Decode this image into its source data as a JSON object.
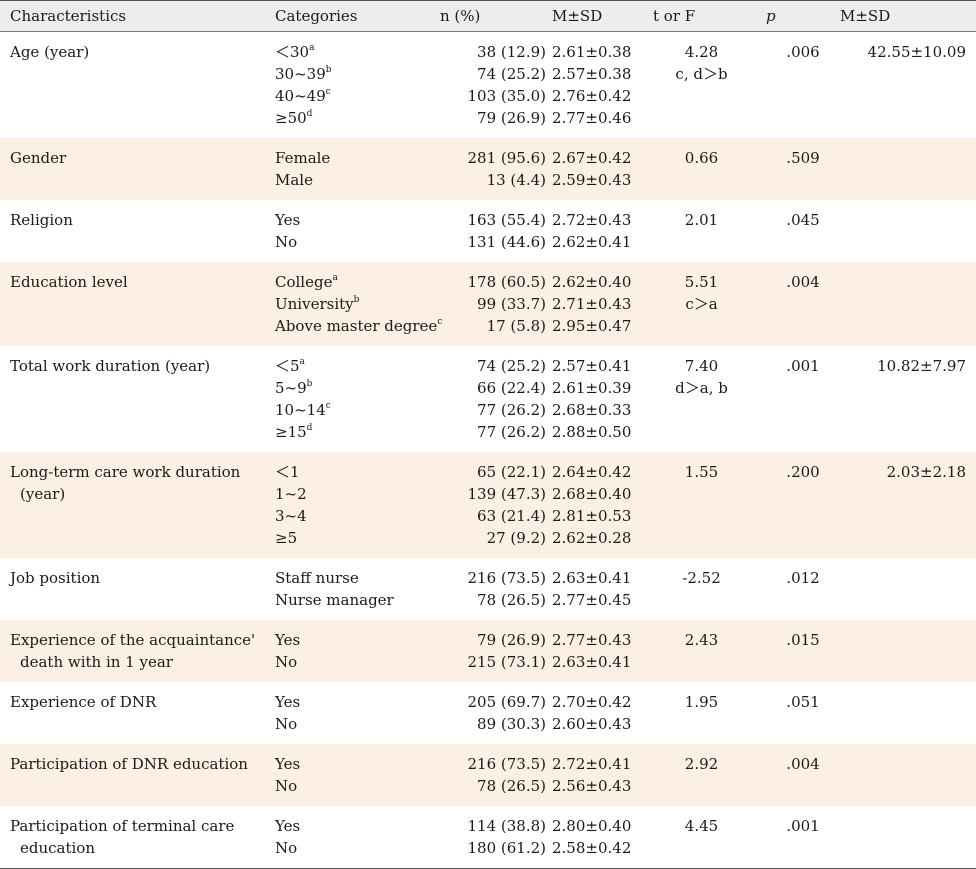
{
  "headers": {
    "characteristics": "Characteristics",
    "categories": "Categories",
    "n_pct": "n (%)",
    "msd": "M±SD",
    "t_or_f": "t or F",
    "p": "p",
    "msd2": "M±SD"
  },
  "rows": [
    {
      "characteristic": [
        "Age (year)"
      ],
      "categories": [
        {
          "label": "＜30",
          "sup": "a"
        },
        {
          "label": "30~39",
          "sup": "b"
        },
        {
          "label": "40~49",
          "sup": "c"
        },
        {
          "label": "≥50",
          "sup": "d"
        }
      ],
      "n": [
        "38 (12.9)",
        "74 (25.2)",
        "103 (35.0)",
        "79 (26.9)"
      ],
      "msd": [
        "2.61±0.38",
        "2.57±0.38",
        "2.76±0.42",
        "2.77±0.46"
      ],
      "t": [
        "4.28",
        "c, d＞b"
      ],
      "p": ".006",
      "msd2": "42.55±10.09",
      "shaded": false
    },
    {
      "characteristic": [
        "Gender"
      ],
      "categories": [
        {
          "label": "Female",
          "sup": ""
        },
        {
          "label": "Male",
          "sup": ""
        }
      ],
      "n": [
        "281 (95.6)",
        "13 (4.4)"
      ],
      "msd": [
        "2.67±0.42",
        "2.59±0.43"
      ],
      "t": [
        "0.66"
      ],
      "p": ".509",
      "msd2": "",
      "shaded": true
    },
    {
      "characteristic": [
        "Religion"
      ],
      "categories": [
        {
          "label": "Yes",
          "sup": ""
        },
        {
          "label": "No",
          "sup": ""
        }
      ],
      "n": [
        "163 (55.4)",
        "131 (44.6)"
      ],
      "msd": [
        "2.72±0.43",
        "2.62±0.41"
      ],
      "t": [
        "2.01"
      ],
      "p": ".045",
      "msd2": "",
      "shaded": false
    },
    {
      "characteristic": [
        "Education level"
      ],
      "categories": [
        {
          "label": "College",
          "sup": "a"
        },
        {
          "label": "University",
          "sup": "b"
        },
        {
          "label": "Above master degree",
          "sup": "c"
        }
      ],
      "n": [
        "178 (60.5)",
        "99 (33.7)",
        "17 (5.8)"
      ],
      "msd": [
        "2.62±0.40",
        "2.71±0.43",
        "2.95±0.47"
      ],
      "t": [
        "5.51",
        "c＞a"
      ],
      "p": ".004",
      "msd2": "",
      "shaded": true
    },
    {
      "characteristic": [
        "Total work duration (year)"
      ],
      "categories": [
        {
          "label": "＜5",
          "sup": "a"
        },
        {
          "label": "5~9",
          "sup": "b"
        },
        {
          "label": "10~14",
          "sup": "c"
        },
        {
          "label": "≥15",
          "sup": "d"
        }
      ],
      "n": [
        "74 (25.2)",
        "66 (22.4)",
        "77 (26.2)",
        "77 (26.2)"
      ],
      "msd": [
        "2.57±0.41",
        "2.61±0.39",
        "2.68±0.33",
        "2.88±0.50"
      ],
      "t": [
        "7.40",
        "d＞a, b"
      ],
      "p": ".001",
      "msd2": "10.82±7.97",
      "shaded": false
    },
    {
      "characteristic": [
        "Long-term care work duration",
        "(year)"
      ],
      "categories": [
        {
          "label": "＜1",
          "sup": ""
        },
        {
          "label": "1~2",
          "sup": ""
        },
        {
          "label": "3~4",
          "sup": ""
        },
        {
          "label": "≥5",
          "sup": ""
        }
      ],
      "n": [
        "65 (22.1)",
        "139 (47.3)",
        "63 (21.4)",
        "27 (9.2)"
      ],
      "msd": [
        "2.64±0.42",
        "2.68±0.40",
        "2.81±0.53",
        "2.62±0.28"
      ],
      "t": [
        "1.55"
      ],
      "p": ".200",
      "msd2": "2.03±2.18",
      "shaded": true
    },
    {
      "characteristic": [
        "Job position"
      ],
      "categories": [
        {
          "label": "Staff nurse",
          "sup": ""
        },
        {
          "label": "Nurse manager",
          "sup": ""
        }
      ],
      "n": [
        "216 (73.5)",
        "78 (26.5)"
      ],
      "msd": [
        "2.63±0.41",
        "2.77±0.45"
      ],
      "t": [
        "-2.52"
      ],
      "p": ".012",
      "msd2": "",
      "shaded": false
    },
    {
      "characteristic": [
        "Experience of the acquaintance'",
        "death with in 1 year"
      ],
      "categories": [
        {
          "label": "Yes",
          "sup": ""
        },
        {
          "label": "No",
          "sup": ""
        }
      ],
      "n": [
        "79 (26.9)",
        "215 (73.1)"
      ],
      "msd": [
        "2.77±0.43",
        "2.63±0.41"
      ],
      "t": [
        "2.43"
      ],
      "p": ".015",
      "msd2": "",
      "shaded": true
    },
    {
      "characteristic": [
        "Experience of DNR"
      ],
      "categories": [
        {
          "label": "Yes",
          "sup": ""
        },
        {
          "label": "No",
          "sup": ""
        }
      ],
      "n": [
        "205 (69.7)",
        "89 (30.3)"
      ],
      "msd": [
        "2.70±0.42",
        "2.60±0.43"
      ],
      "t": [
        "1.95"
      ],
      "p": ".051",
      "msd2": "",
      "shaded": false
    },
    {
      "characteristic": [
        "Participation of DNR education"
      ],
      "categories": [
        {
          "label": "Yes",
          "sup": ""
        },
        {
          "label": "No",
          "sup": ""
        }
      ],
      "n": [
        "216 (73.5)",
        "78 (26.5)"
      ],
      "msd": [
        "2.72±0.41",
        "2.56±0.43"
      ],
      "t": [
        "2.92"
      ],
      "p": ".004",
      "msd2": "",
      "shaded": true
    },
    {
      "characteristic": [
        "Participation of terminal care",
        "education"
      ],
      "categories": [
        {
          "label": "Yes",
          "sup": ""
        },
        {
          "label": "No",
          "sup": ""
        }
      ],
      "n": [
        "114 (38.8)",
        "180 (61.2)"
      ],
      "msd": [
        "2.80±0.40",
        "2.58±0.42"
      ],
      "t": [
        "4.45"
      ],
      "p": ".001",
      "msd2": "",
      "shaded": false
    }
  ]
}
